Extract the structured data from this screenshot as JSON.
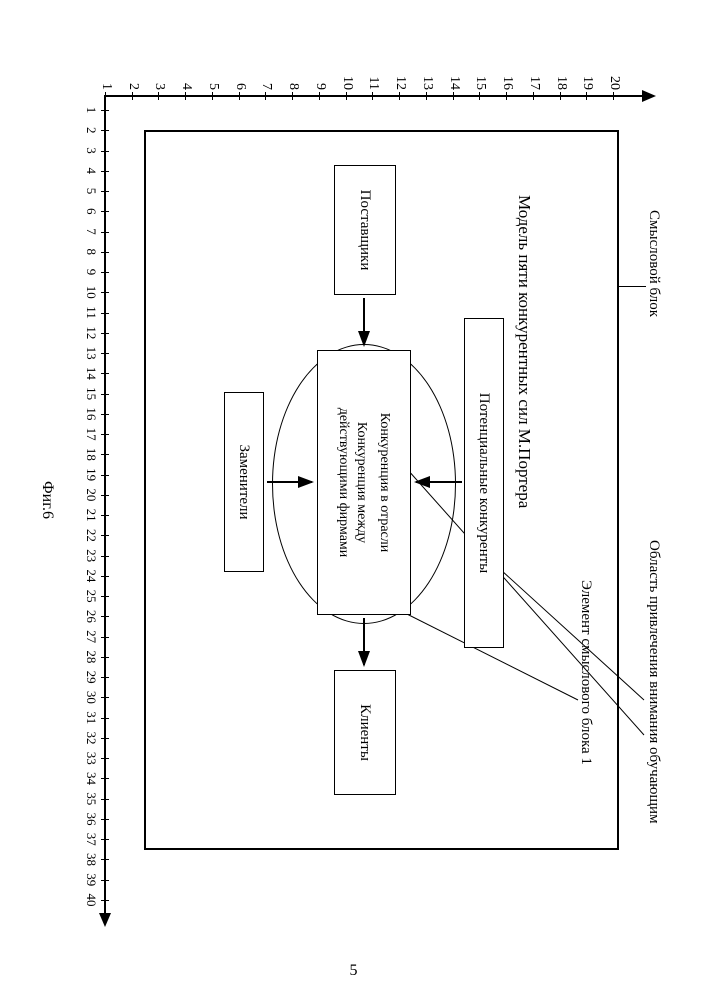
{
  "figure_label": "Фиг.6",
  "page_number": "5",
  "callouts": {
    "block": "Смысловой блок",
    "attention_area": "Область привлечения внимания обучающим",
    "element": "Элемент смыслового блока 1"
  },
  "diagram": {
    "title": "Модель пяти конкурентных сил М.Портера",
    "nodes": {
      "potential": "Потенциальные конкуренты",
      "center_l1": "Конкуренция в отрасли",
      "center_l2": "Конкуренция между",
      "center_l3": "действующими фирмами",
      "suppliers": "Поставщики",
      "clients": "Клиенты",
      "substitutes": "Заменители"
    }
  },
  "axes": {
    "y": {
      "min": 1,
      "max": 20
    },
    "x": {
      "min": 1,
      "max": 40
    }
  },
  "style": {
    "bg": "#ffffff",
    "stroke": "#000000",
    "font_axis": 14,
    "font_node": 15
  }
}
